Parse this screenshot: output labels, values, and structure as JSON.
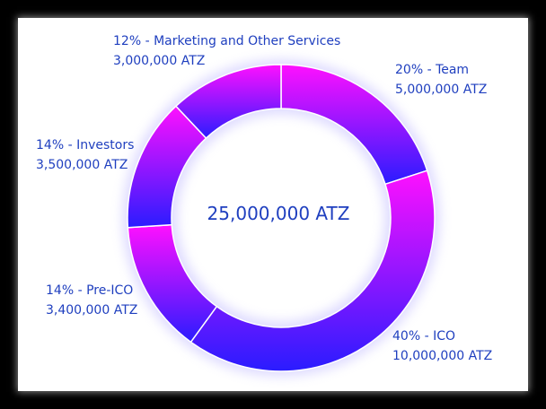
{
  "chart_data": {
    "type": "pie",
    "variant": "donut",
    "center_label": "25,000,000 ATZ",
    "slices": [
      {
        "label": "20% - Team",
        "percent": 20,
        "amount": "5,000,000 ATZ"
      },
      {
        "label": "40% - ICO",
        "percent": 40,
        "amount": "10,000,000 ATZ"
      },
      {
        "label": "14% - Pre-ICO",
        "percent": 14,
        "amount": "3,400,000 ATZ"
      },
      {
        "label": "14% - Investors",
        "percent": 14,
        "amount": "3,500,000 ATZ"
      },
      {
        "label": "12% - Marketing and Other Services",
        "percent": 12,
        "amount": "3,000,000 ATZ"
      }
    ],
    "colors": {
      "gradient_top": "#ff10ff",
      "gradient_bottom": "#2a1cff",
      "label_text": "#1f3fbf",
      "divider": "#ffffff",
      "frame": "#000000"
    }
  }
}
